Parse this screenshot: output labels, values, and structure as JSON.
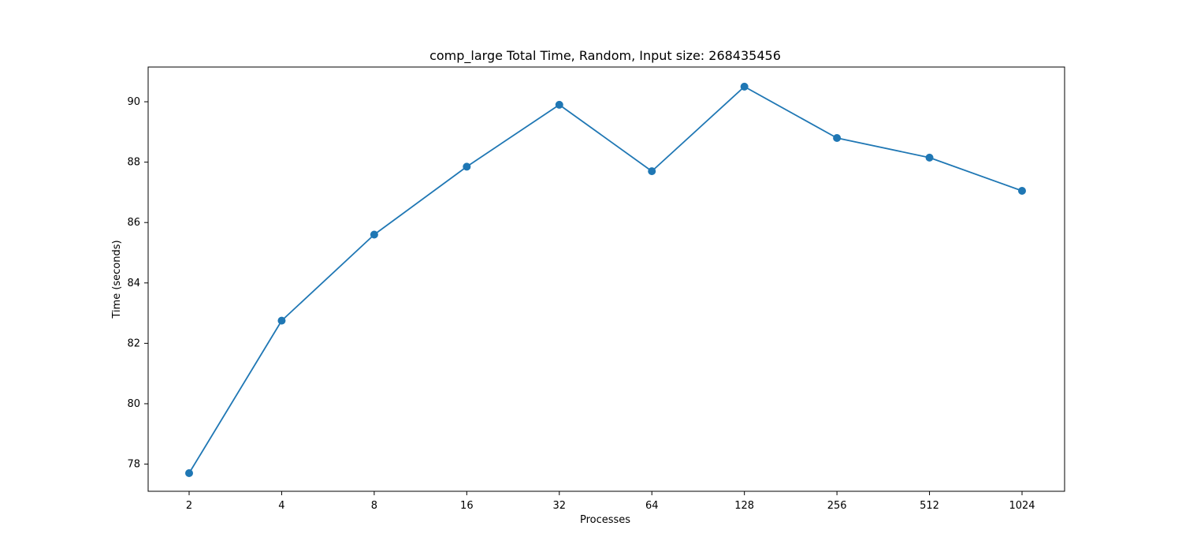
{
  "chart_data": {
    "type": "line",
    "title": "comp_large Total Time, Random, Input size: 268435456",
    "xlabel": "Processes",
    "ylabel": "Time (seconds)",
    "categories": [
      "2",
      "4",
      "8",
      "16",
      "32",
      "64",
      "128",
      "256",
      "512",
      "1024"
    ],
    "series": [
      {
        "values": [
          77.7,
          82.75,
          85.6,
          87.85,
          89.9,
          87.7,
          90.5,
          88.8,
          88.15,
          87.05
        ],
        "color": "#1f77b4",
        "marker": "circle"
      }
    ],
    "ylim": [
      77.1,
      91.15
    ],
    "yticks": [
      78,
      80,
      82,
      84,
      86,
      88,
      90
    ],
    "grid": false,
    "legend": false
  }
}
